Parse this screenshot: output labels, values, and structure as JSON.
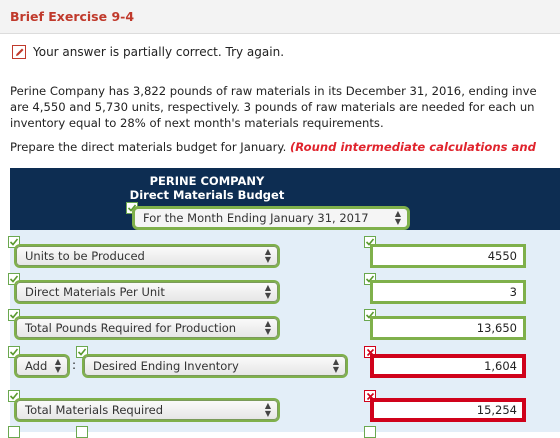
{
  "header": {
    "title": "Brief Exercise 9-4"
  },
  "status": {
    "message": "Your answer is partially correct.  Try again."
  },
  "problem": {
    "line1": "Perine Company has 3,822 pounds of raw materials in its December 31, 2016, ending inve",
    "line2": "are 4,550 and 5,730 units, respectively. 3 pounds of raw materials are needed for each un",
    "line3": "inventory equal to 28% of next month's materials requirements."
  },
  "instructions": {
    "prefix": "Prepare the direct materials budget for January. ",
    "note": "(Round intermediate calculations and"
  },
  "budget": {
    "company": "PERINE COMPANY",
    "name": "Direct Materials Budget",
    "period": "For the Month Ending January 31, 2017",
    "rows": [
      {
        "label": "Units to be Produced",
        "value": "4550",
        "status": "correct"
      },
      {
        "label": "Direct Materials Per Unit",
        "value": "3",
        "status": "correct"
      },
      {
        "label": "Total Pounds Required for Production",
        "value": "13,650",
        "status": "correct"
      },
      {
        "operator": "Add",
        "label": "Desired Ending Inventory",
        "value": "1,604",
        "status": "incorrect"
      },
      {
        "label": "Total Materials Required",
        "value": "15,254",
        "status": "incorrect"
      }
    ]
  },
  "colors": {
    "title": "#c0392b",
    "header_bg": "#0d2d52",
    "panel_bg": "#e3eef8",
    "correct": "#7fb04b",
    "incorrect": "#d0021b"
  }
}
